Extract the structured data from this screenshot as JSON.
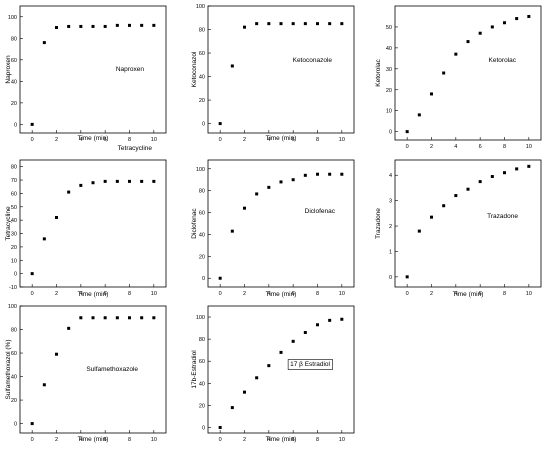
{
  "chart_data": [
    {
      "type": "scatter",
      "xlabel": "Time (min)",
      "ylabel": "Naproxen",
      "xlim": [
        -1,
        11
      ],
      "ylim": [
        -8,
        110
      ],
      "xticks": [
        0,
        2,
        4,
        6,
        8,
        10
      ],
      "yticks": [
        0,
        20,
        40,
        60,
        80,
        100
      ],
      "annotation": "Naproxen",
      "annotation_boxed": false,
      "points": [
        [
          0,
          0
        ],
        [
          1,
          76
        ],
        [
          2,
          90
        ],
        [
          3,
          91
        ],
        [
          4,
          91
        ],
        [
          5,
          91
        ],
        [
          6,
          91
        ],
        [
          7,
          92
        ],
        [
          8,
          92
        ],
        [
          9,
          92
        ],
        [
          10,
          92
        ]
      ]
    },
    {
      "type": "scatter",
      "xlabel": "Time (min)",
      "ylabel": "Ketoconazol",
      "xlim": [
        -1,
        11
      ],
      "ylim": [
        -8,
        100
      ],
      "xticks": [
        0,
        2,
        4,
        6,
        8,
        10
      ],
      "yticks": [
        0,
        20,
        40,
        60,
        80,
        100
      ],
      "annotation": "Ketoconazole",
      "annotation_boxed": false,
      "points": [
        [
          0,
          0
        ],
        [
          1,
          49
        ],
        [
          2,
          82
        ],
        [
          3,
          85
        ],
        [
          4,
          85
        ],
        [
          5,
          85
        ],
        [
          6,
          85
        ],
        [
          7,
          85
        ],
        [
          8,
          85
        ],
        [
          9,
          85
        ],
        [
          10,
          85
        ]
      ]
    },
    {
      "type": "scatter",
      "xlabel": "",
      "ylabel": "Ketorolac",
      "xlim": [
        -1,
        11
      ],
      "ylim": [
        -4,
        60
      ],
      "xticks": [
        0,
        2,
        4,
        6,
        8,
        10
      ],
      "yticks": [
        0,
        10,
        20,
        30,
        40,
        50
      ],
      "annotation": "Ketorolac",
      "annotation_boxed": false,
      "points": [
        [
          0,
          0
        ],
        [
          1,
          8
        ],
        [
          2,
          18
        ],
        [
          3,
          28
        ],
        [
          4,
          37
        ],
        [
          5,
          43
        ],
        [
          6,
          47
        ],
        [
          7,
          50
        ],
        [
          8,
          52
        ],
        [
          9,
          54
        ],
        [
          10,
          55
        ]
      ]
    },
    {
      "type": "scatter",
      "xlabel": "Time (min)",
      "ylabel": "Tetracycline",
      "xlim": [
        -1,
        11
      ],
      "ylim": [
        -10,
        85
      ],
      "xticks": [
        0,
        2,
        4,
        6,
        8,
        10
      ],
      "yticks": [
        -10,
        0,
        10,
        20,
        30,
        40,
        50,
        60,
        70,
        80
      ],
      "annotation": "Tetracycline",
      "annotation_boxed": false,
      "points": [
        [
          0,
          0
        ],
        [
          1,
          26
        ],
        [
          2,
          42
        ],
        [
          3,
          61
        ],
        [
          4,
          66
        ],
        [
          5,
          68
        ],
        [
          6,
          69
        ],
        [
          7,
          69
        ],
        [
          8,
          69
        ],
        [
          9,
          69
        ],
        [
          10,
          69
        ]
      ]
    },
    {
      "type": "scatter",
      "xlabel": "Time (min)",
      "ylabel": "Diclofenac",
      "xlim": [
        -1,
        11
      ],
      "ylim": [
        -8,
        108
      ],
      "xticks": [
        0,
        2,
        4,
        6,
        8,
        10
      ],
      "yticks": [
        0,
        20,
        40,
        60,
        80,
        100
      ],
      "annotation": "Diclofenac",
      "annotation_boxed": false,
      "points": [
        [
          0,
          0
        ],
        [
          1,
          43
        ],
        [
          2,
          64
        ],
        [
          3,
          77
        ],
        [
          4,
          83
        ],
        [
          5,
          88
        ],
        [
          6,
          90
        ],
        [
          7,
          94
        ],
        [
          8,
          95
        ],
        [
          9,
          95
        ],
        [
          10,
          95
        ]
      ]
    },
    {
      "type": "scatter",
      "xlabel": "Time (min)",
      "ylabel": "Trazadone",
      "xlim": [
        -1,
        11
      ],
      "ylim": [
        -0.4,
        4.6
      ],
      "xticks": [
        0,
        2,
        4,
        6,
        8,
        10
      ],
      "yticks": [
        0,
        1,
        2,
        3,
        4
      ],
      "annotation": "Trazadone",
      "annotation_boxed": false,
      "points": [
        [
          0,
          0
        ],
        [
          1,
          1.8
        ],
        [
          2,
          2.35
        ],
        [
          3,
          2.8
        ],
        [
          4,
          3.2
        ],
        [
          5,
          3.45
        ],
        [
          6,
          3.75
        ],
        [
          7,
          3.95
        ],
        [
          8,
          4.1
        ],
        [
          9,
          4.25
        ],
        [
          10,
          4.35
        ]
      ]
    },
    {
      "type": "scatter",
      "xlabel": "Time (min)",
      "ylabel": "Sulfamethoxazol (%)",
      "xlim": [
        -1,
        11
      ],
      "ylim": [
        -8,
        100
      ],
      "xticks": [
        0,
        2,
        4,
        6,
        8,
        10
      ],
      "yticks": [
        0,
        20,
        40,
        60,
        80,
        100
      ],
      "annotation": "Sulfamethoxazole",
      "annotation_boxed": false,
      "points": [
        [
          0,
          0
        ],
        [
          1,
          33
        ],
        [
          2,
          59
        ],
        [
          3,
          81
        ],
        [
          4,
          90
        ],
        [
          5,
          90
        ],
        [
          6,
          90
        ],
        [
          7,
          90
        ],
        [
          8,
          90
        ],
        [
          9,
          90
        ],
        [
          10,
          90
        ]
      ]
    },
    {
      "type": "scatter",
      "xlabel": "Time (min)",
      "ylabel": "17b-Estradiol",
      "xlim": [
        -1,
        11
      ],
      "ylim": [
        -5,
        110
      ],
      "xticks": [
        0,
        2,
        4,
        6,
        8,
        10
      ],
      "yticks": [
        0,
        20,
        40,
        60,
        80,
        100
      ],
      "annotation": "17 β Estradiol",
      "annotation_boxed": true,
      "points": [
        [
          0,
          0
        ],
        [
          1,
          18
        ],
        [
          2,
          32
        ],
        [
          3,
          45
        ],
        [
          4,
          56
        ],
        [
          5,
          68
        ],
        [
          6,
          78
        ],
        [
          7,
          86
        ],
        [
          8,
          93
        ],
        [
          9,
          97
        ],
        [
          10,
          98
        ]
      ]
    }
  ]
}
